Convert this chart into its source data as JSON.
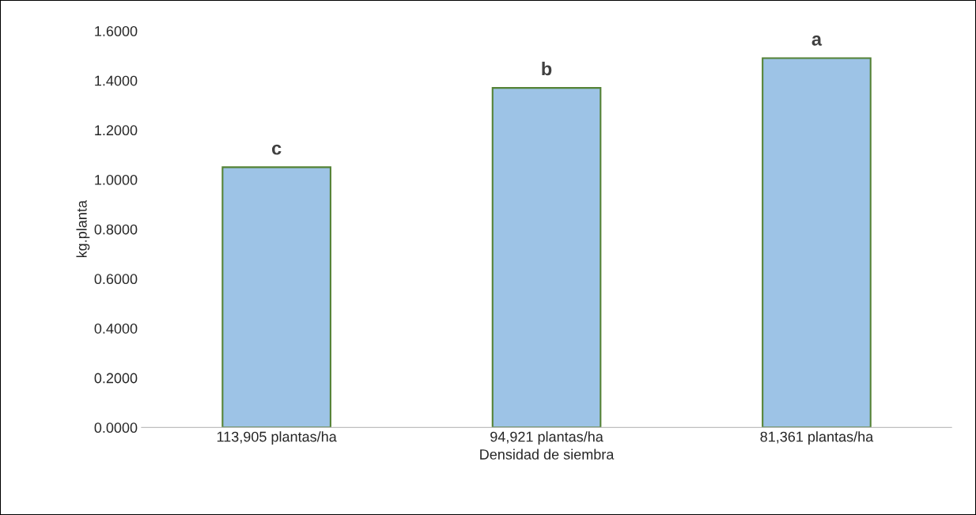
{
  "chart_data": {
    "type": "bar",
    "xlabel": "Densidad de siembra",
    "ylabel": "kg.planta",
    "categories": [
      "113,905 plantas/ha",
      "94,921 plantas/ha",
      "81,361 plantas/ha"
    ],
    "values": [
      1.05,
      1.37,
      1.49
    ],
    "color": "#9dc3e6",
    "ylim": [
      0,
      1.6
    ],
    "yticks": [
      {
        "value": 0,
        "label": "0.0000"
      },
      {
        "value": 0.2,
        "label": "0.2000"
      },
      {
        "value": 0.4,
        "label": "0.4000"
      },
      {
        "value": 0.6,
        "label": "0.6000"
      },
      {
        "value": 0.8,
        "label": "0.8000"
      },
      {
        "value": 1.0,
        "label": "1.0000"
      },
      {
        "value": 1.2,
        "label": "1.2000"
      },
      {
        "value": 1.4,
        "label": "1.4000"
      },
      {
        "value": 1.6,
        "label": "1.6000"
      }
    ],
    "annotations": [
      {
        "text": "c",
        "x": "113,905 plantas/ha",
        "y": 1.05
      },
      {
        "text": "b",
        "x": "94,921 plantas/ha",
        "y": 1.37
      },
      {
        "text": "a",
        "x": "81,361 plantas/ha",
        "y": 1.49
      }
    ],
    "grid": false,
    "legend": false
  }
}
